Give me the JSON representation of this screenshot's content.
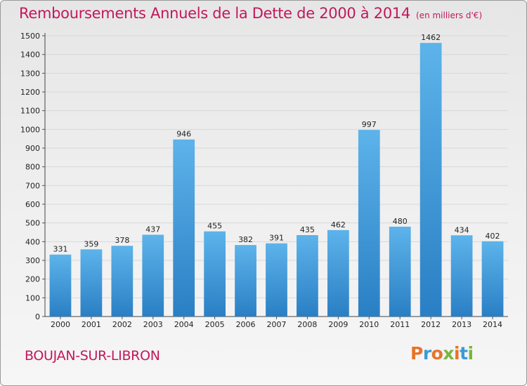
{
  "title": "Remboursements Annuels de la Dette de 2000 à 2014",
  "subtitle": "(en milliers d'€)",
  "city": "BOUJAN-SUR-LIBRON",
  "logo": {
    "text": "Proxiti",
    "colors": [
      "#e8732a",
      "#3a9bd5",
      "#e8732a",
      "#79b63c",
      "#e8732a",
      "#3a9bd5",
      "#79b63c"
    ]
  },
  "colors": {
    "bar_top": "#5db3ea",
    "bar_bottom": "#2a7fc4",
    "title": "#c2185b",
    "grid": "#d8d8d8"
  },
  "chart_data": {
    "type": "bar",
    "categories": [
      "2000",
      "2001",
      "2002",
      "2003",
      "2004",
      "2005",
      "2006",
      "2007",
      "2008",
      "2009",
      "2010",
      "2011",
      "2012",
      "2013",
      "2014"
    ],
    "values": [
      331,
      359,
      378,
      437,
      946,
      455,
      382,
      391,
      435,
      462,
      997,
      480,
      1462,
      434,
      402
    ],
    "ylim": [
      0,
      1500
    ],
    "yticks": [
      0,
      100,
      200,
      300,
      400,
      500,
      600,
      700,
      800,
      900,
      1000,
      1100,
      1200,
      1300,
      1400,
      1500
    ],
    "grid": true,
    "data_labels": true
  }
}
